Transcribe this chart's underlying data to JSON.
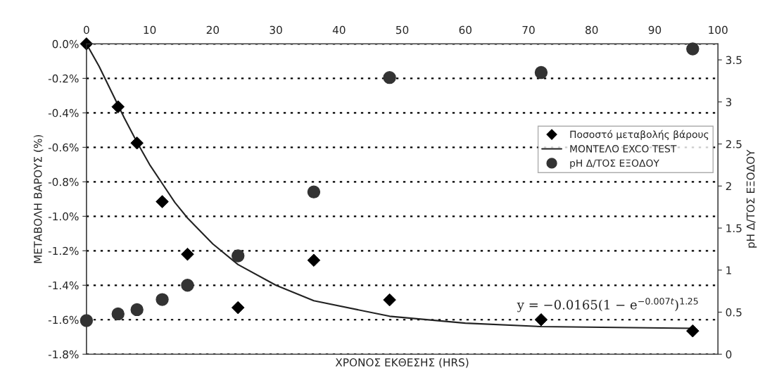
{
  "chart_data": {
    "type": "scatter",
    "xlabel": "ΧΡΟΝΟΣ ΕΚΘΕΣΗΣ (HRS)",
    "ylabel": "ΜΕΤΑΒΟΛΗ ΒΑΡΟΥΣ (%)",
    "y2label": "pH Δ/ΤΟΣ ΕΞΟΔΟΥ",
    "xlim": [
      0,
      100
    ],
    "xticks": [
      0,
      10,
      20,
      30,
      40,
      50,
      60,
      70,
      80,
      90,
      100
    ],
    "ylim": [
      -1.8,
      0
    ],
    "yticks": [
      {
        "value": -1.8,
        "label": "-1.8%"
      },
      {
        "value": -1.6,
        "label": "-1.6%"
      },
      {
        "value": -1.4,
        "label": "-1.4%"
      },
      {
        "value": -1.2,
        "label": "-1.2%"
      },
      {
        "value": -1.0,
        "label": "-1.0%"
      },
      {
        "value": -0.8,
        "label": "-0.8%"
      },
      {
        "value": -0.6,
        "label": "-0.6%"
      },
      {
        "value": -0.4,
        "label": "-0.4%"
      },
      {
        "value": -0.2,
        "label": "-0.2%"
      },
      {
        "value": 0,
        "label": "0.0%"
      }
    ],
    "y2lim": [
      0,
      3.69
    ],
    "y2ticks": [
      0,
      0.5,
      1,
      1.5,
      2,
      2.5,
      3,
      3.5
    ],
    "grid": "y",
    "legend": "right",
    "annotations": [
      "y = −0.0165(1 − e$^{−0.007t}$)$^{1.25}$"
    ],
    "series": [
      {
        "name": "Ποσοστό μεταβολής βάρους",
        "marker": "diamond",
        "color": "#000000",
        "x": [
          0,
          5,
          8,
          12,
          16,
          24,
          36,
          48,
          72,
          96
        ],
        "values": [
          0,
          -0.365,
          -0.575,
          -0.915,
          -1.22,
          -1.53,
          -1.255,
          -1.485,
          -1.6,
          -1.665
        ]
      },
      {
        "name": "ΜΟΝΤΕΛΟ EXCO TEST",
        "type": "line",
        "line_style": "solid",
        "color": "#222222",
        "x": [
          0,
          2,
          4,
          6,
          8,
          10,
          12,
          14,
          16,
          20,
          24,
          30,
          36,
          48,
          60,
          72,
          96
        ],
        "values": [
          0,
          -0.13,
          -0.28,
          -0.43,
          -0.57,
          -0.7,
          -0.81,
          -0.92,
          -1.01,
          -1.16,
          -1.28,
          -1.4,
          -1.49,
          -1.58,
          -1.62,
          -1.64,
          -1.65
        ]
      },
      {
        "name": "pH Δ/ΤΟΣ ΕΞΟΔΟΥ",
        "marker": "circle",
        "axis": "y2",
        "color": "#333333",
        "x": [
          0,
          5,
          8,
          12,
          16,
          24,
          36,
          48,
          72,
          96
        ],
        "values": [
          0.4,
          0.48,
          0.53,
          0.65,
          0.82,
          1.17,
          1.93,
          3.29,
          3.35,
          3.63
        ]
      }
    ]
  }
}
